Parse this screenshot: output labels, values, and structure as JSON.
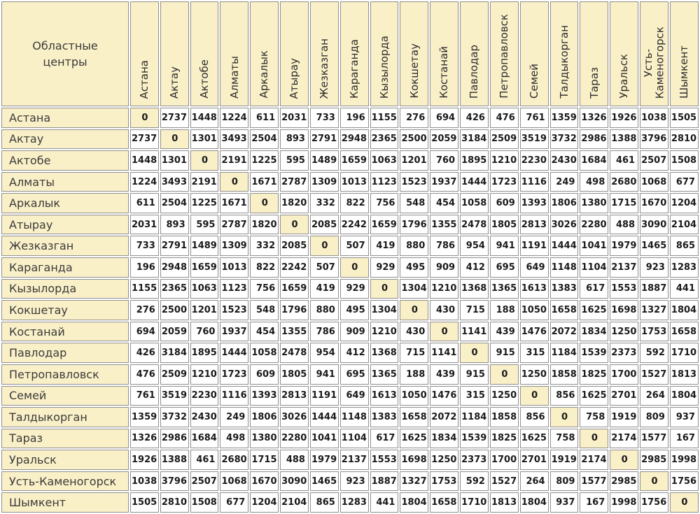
{
  "table": {
    "corner_label": "Областные\nцентры",
    "row_labels": [
      "Астана",
      "Актау",
      "Актобе",
      "Алматы",
      "Аркалык",
      "Атырау",
      "Жезказган",
      "Караганда",
      "Кызылорда",
      "Кокшетау",
      "Костанай",
      "Павлодар",
      "Петропавловск",
      "Семей",
      "Талдыкорган",
      "Тараз",
      "Уральск",
      "Усть-Каменогорск",
      "Шымкент"
    ],
    "col_labels": [
      "Астана",
      "Актау",
      "Актобе",
      "Алматы",
      "Аркалык",
      "Атырау",
      "Жезказган",
      "Караганда",
      "Кызылорда",
      "Кокшетау",
      "Костанай",
      "Павлодар",
      "Петропавловск",
      "Семей",
      "Талдыкорган",
      "Тараз",
      "Уральск",
      "Усть-\nКаменогорск",
      "Шымкент"
    ],
    "matrix": [
      [
        0,
        2737,
        1448,
        1224,
        611,
        2031,
        733,
        196,
        1155,
        276,
        694,
        426,
        476,
        761,
        1359,
        1326,
        1926,
        1038,
        1505
      ],
      [
        2737,
        0,
        1301,
        3493,
        2504,
        893,
        2791,
        2948,
        2365,
        2500,
        2059,
        3184,
        2509,
        3519,
        3732,
        2986,
        1388,
        3796,
        2810
      ],
      [
        1448,
        1301,
        0,
        2191,
        1225,
        595,
        1489,
        1659,
        1063,
        1201,
        760,
        1895,
        1210,
        2230,
        2430,
        1684,
        461,
        2507,
        1508
      ],
      [
        1224,
        3493,
        2191,
        0,
        1671,
        2787,
        1309,
        1013,
        1123,
        1523,
        1937,
        1444,
        1723,
        1116,
        249,
        498,
        2680,
        1068,
        677
      ],
      [
        611,
        2504,
        1225,
        1671,
        0,
        1820,
        332,
        822,
        756,
        548,
        454,
        1058,
        609,
        1393,
        1806,
        1380,
        1715,
        1670,
        1204
      ],
      [
        2031,
        893,
        595,
        2787,
        1820,
        0,
        2085,
        2242,
        1659,
        1796,
        1355,
        2478,
        1805,
        2813,
        3026,
        2280,
        488,
        3090,
        2104
      ],
      [
        733,
        2791,
        1489,
        1309,
        332,
        2085,
        0,
        507,
        419,
        880,
        786,
        954,
        941,
        1191,
        1444,
        1041,
        1979,
        1465,
        865
      ],
      [
        196,
        2948,
        1659,
        1013,
        822,
        2242,
        507,
        0,
        929,
        495,
        909,
        412,
        695,
        649,
        1148,
        1104,
        2137,
        923,
        1283
      ],
      [
        1155,
        2365,
        1063,
        1123,
        756,
        1659,
        419,
        929,
        0,
        1304,
        1210,
        1368,
        1365,
        1613,
        1383,
        617,
        1553,
        1887,
        441
      ],
      [
        276,
        2500,
        1201,
        1523,
        548,
        1796,
        880,
        495,
        1304,
        0,
        430,
        715,
        188,
        1050,
        1658,
        1625,
        1698,
        1327,
        1804
      ],
      [
        694,
        2059,
        760,
        1937,
        454,
        1355,
        786,
        909,
        1210,
        430,
        0,
        1141,
        439,
        1476,
        2072,
        1834,
        1250,
        1753,
        1658
      ],
      [
        426,
        3184,
        1895,
        1444,
        1058,
        2478,
        954,
        412,
        1368,
        715,
        1141,
        0,
        915,
        315,
        1184,
        1539,
        2373,
        592,
        1710
      ],
      [
        476,
        2509,
        1210,
        1723,
        609,
        1805,
        941,
        695,
        1365,
        188,
        439,
        915,
        0,
        1250,
        1858,
        1825,
        1700,
        1527,
        1813
      ],
      [
        761,
        3519,
        2230,
        1116,
        1393,
        2813,
        1191,
        649,
        1613,
        1050,
        1476,
        315,
        1250,
        0,
        856,
        1625,
        2701,
        264,
        1804
      ],
      [
        1359,
        3732,
        2430,
        249,
        1806,
        3026,
        1444,
        1148,
        1383,
        1658,
        2072,
        1184,
        1858,
        856,
        0,
        758,
        1919,
        809,
        937
      ],
      [
        1326,
        2986,
        1684,
        498,
        1380,
        2280,
        1041,
        1104,
        617,
        1625,
        1834,
        1539,
        1825,
        1625,
        758,
        0,
        2174,
        1577,
        167
      ],
      [
        1926,
        1388,
        461,
        2680,
        1715,
        488,
        1979,
        2137,
        1553,
        1698,
        1250,
        2373,
        1700,
        2701,
        1919,
        2174,
        0,
        2985,
        1998
      ],
      [
        1038,
        3796,
        2507,
        1068,
        1670,
        3090,
        1465,
        923,
        1887,
        1327,
        1753,
        592,
        1527,
        264,
        809,
        1577,
        2985,
        0,
        1756
      ],
      [
        1505,
        2810,
        1508,
        677,
        1204,
        2104,
        865,
        1283,
        441,
        1804,
        1658,
        1710,
        1813,
        1804,
        937,
        167,
        1998,
        1756,
        0
      ]
    ],
    "colors": {
      "header_bg": "#faf0c8",
      "cell_bg": "#ffffff",
      "border": "#8f8f8f",
      "number_text": "#1a1a1a",
      "label_text": "#3a3a3a"
    }
  }
}
